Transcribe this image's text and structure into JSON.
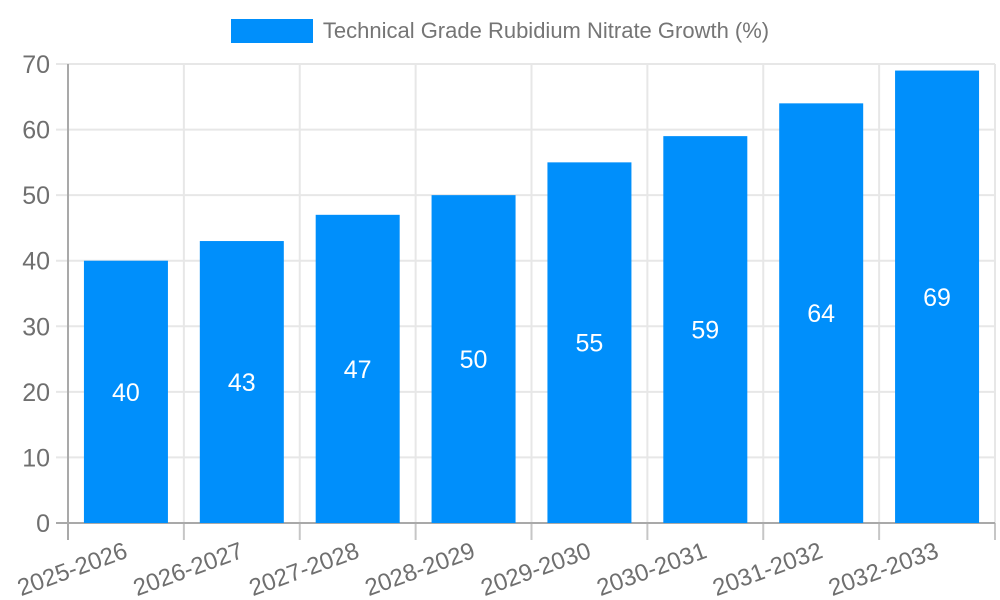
{
  "legend": {
    "items": [
      {
        "label": "Technical Grade Rubidium Nitrate Growth (%)",
        "color": "#008FFB"
      }
    ]
  },
  "chart_data": {
    "type": "bar",
    "title": "Technical Grade Rubidium Nitrate Growth (%)",
    "categories": [
      "2025-2026",
      "2026-2027",
      "2027-2028",
      "2028-2029",
      "2029-2030",
      "2030-2031",
      "2031-2032",
      "2032-2033"
    ],
    "series": [
      {
        "name": "Technical Grade Rubidium Nitrate Growth (%)",
        "color": "#008FFB",
        "values": [
          40,
          43,
          47,
          50,
          55,
          59,
          64,
          69
        ]
      }
    ],
    "data_labels_shown": true,
    "xlabel": "",
    "ylabel": "",
    "ylim": [
      0,
      70
    ],
    "yticks": [
      0,
      10,
      20,
      30,
      40,
      50,
      60,
      70
    ],
    "grid": true,
    "legend_position": "top-center",
    "colors": {
      "bar": "#008FFB",
      "grid": "#e7e7e7",
      "axis": "#a9a9a9",
      "sub_tick": "#c6c6c6",
      "tick_text": "#6f6f6f",
      "legend_text": "#757575",
      "data_label": "#ffffff"
    }
  }
}
